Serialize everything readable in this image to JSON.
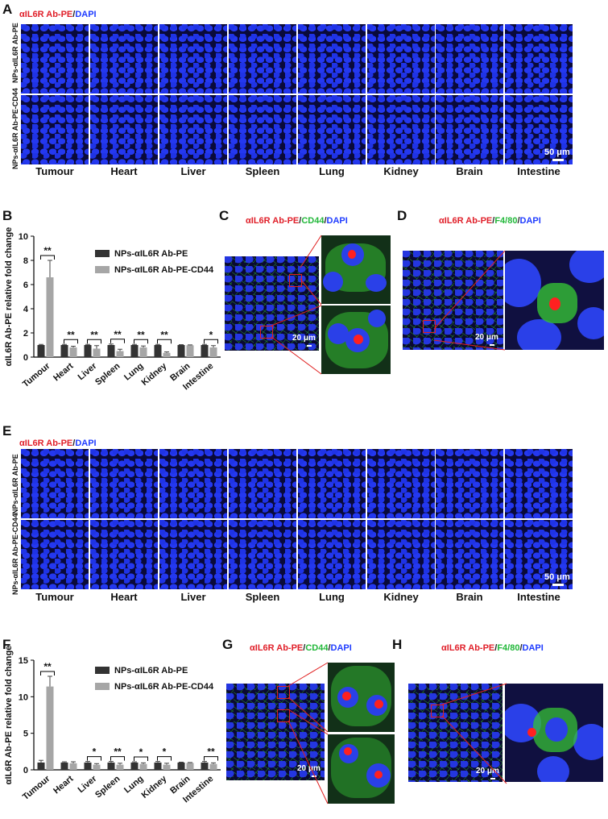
{
  "panelA": {
    "letter": "A",
    "stain_red": "αIL6R Ab-PE",
    "stain_sep": "/",
    "stain_blue": "DAPI",
    "row1": "NPs-αIL6R Ab-PE",
    "row2": "NPs-αIL6R Ab-PE-CD44",
    "organs": [
      "Tumour",
      "Heart",
      "Liver",
      "Spleen",
      "Lung",
      "Kidney",
      "Brain",
      "Intestine"
    ],
    "scale": "50 μm"
  },
  "panelB": {
    "letter": "B",
    "chart_data": {
      "type": "bar",
      "ylabel": "αIL6R Ab-PE relative fold change",
      "ylim": [
        0,
        10
      ],
      "yticks": [
        "0",
        "2",
        "4",
        "6",
        "8",
        "10"
      ],
      "categories": [
        "Tumour",
        "Heart",
        "Liver",
        "Spleen",
        "Lung",
        "Kidney",
        "Brain",
        "Intestine"
      ],
      "series": [
        {
          "name": "NPs-αIL6R Ab-PE",
          "color": "#333333",
          "values": [
            1.0,
            1.0,
            1.0,
            1.0,
            1.0,
            1.0,
            1.0,
            1.0
          ],
          "errors": [
            0.05,
            0.05,
            0.05,
            0.08,
            0.05,
            0.05,
            0.03,
            0.05
          ]
        },
        {
          "name": "NPs-αIL6R Ab-PE-CD44",
          "color": "#a6a6a6",
          "values": [
            6.6,
            0.8,
            0.7,
            0.5,
            0.8,
            0.35,
            0.98,
            0.8
          ],
          "errors": [
            1.4,
            0.1,
            0.25,
            0.15,
            0.12,
            0.08,
            0.03,
            0.15
          ]
        }
      ],
      "significance": [
        "**",
        "**",
        "**",
        "**",
        "**",
        "**",
        "",
        "*"
      ]
    }
  },
  "panelC": {
    "letter": "C",
    "s1": "αIL6R Ab-PE",
    "s2": "CD44",
    "s3": "DAPI",
    "sep": "/",
    "scale": "20 μm"
  },
  "panelD": {
    "letter": "D",
    "s1": "αIL6R Ab-PE",
    "s2": "F4/80",
    "s3": "DAPI",
    "sep": "/",
    "scale": "20 μm"
  },
  "panelE": {
    "letter": "E",
    "stain_red": "αIL6R Ab-PE",
    "stain_sep": "/",
    "stain_blue": "DAPI",
    "row1": "NPs-αIL6R Ab-PE",
    "row2": "NPs-αIL6R Ab-PE-CD44",
    "organs": [
      "Tumour",
      "Heart",
      "Liver",
      "Spleen",
      "Lung",
      "Kidney",
      "Brain",
      "Intestine"
    ],
    "scale": "50 μm"
  },
  "panelF": {
    "letter": "F",
    "chart_data": {
      "type": "bar",
      "ylabel": "αIL6R Ab-PE relative fold change",
      "ylim": [
        0,
        15
      ],
      "yticks": [
        "0",
        "5",
        "10",
        "15"
      ],
      "categories": [
        "Tumour",
        "Heart",
        "Liver",
        "Spleen",
        "Lung",
        "Kidney",
        "Brain",
        "Intestine"
      ],
      "series": [
        {
          "name": "NPs-αIL6R Ab-PE",
          "color": "#333333",
          "values": [
            1.0,
            1.0,
            1.0,
            1.0,
            1.0,
            1.0,
            1.0,
            1.0
          ],
          "errors": [
            0.3,
            0.1,
            0.15,
            0.15,
            0.1,
            0.15,
            0.05,
            0.15
          ]
        },
        {
          "name": "NPs-αIL6R Ab-PE-CD44",
          "color": "#a6a6a6",
          "values": [
            11.4,
            0.9,
            0.7,
            0.7,
            0.8,
            0.7,
            0.95,
            0.8
          ],
          "errors": [
            1.4,
            0.2,
            0.15,
            0.2,
            0.15,
            0.2,
            0.05,
            0.15
          ]
        }
      ],
      "significance": [
        "**",
        "",
        "*",
        "**",
        "*",
        "*",
        "",
        "**"
      ]
    }
  },
  "panelG": {
    "letter": "G",
    "s1": "αIL6R Ab-PE",
    "s2": "CD44",
    "s3": "DAPI",
    "sep": "/",
    "scale": "20 μm"
  },
  "panelH": {
    "letter": "H",
    "s1": "αIL6R Ab-PE",
    "s2": "F4/80",
    "s3": "DAPI",
    "sep": "/",
    "scale": "20 μm"
  }
}
